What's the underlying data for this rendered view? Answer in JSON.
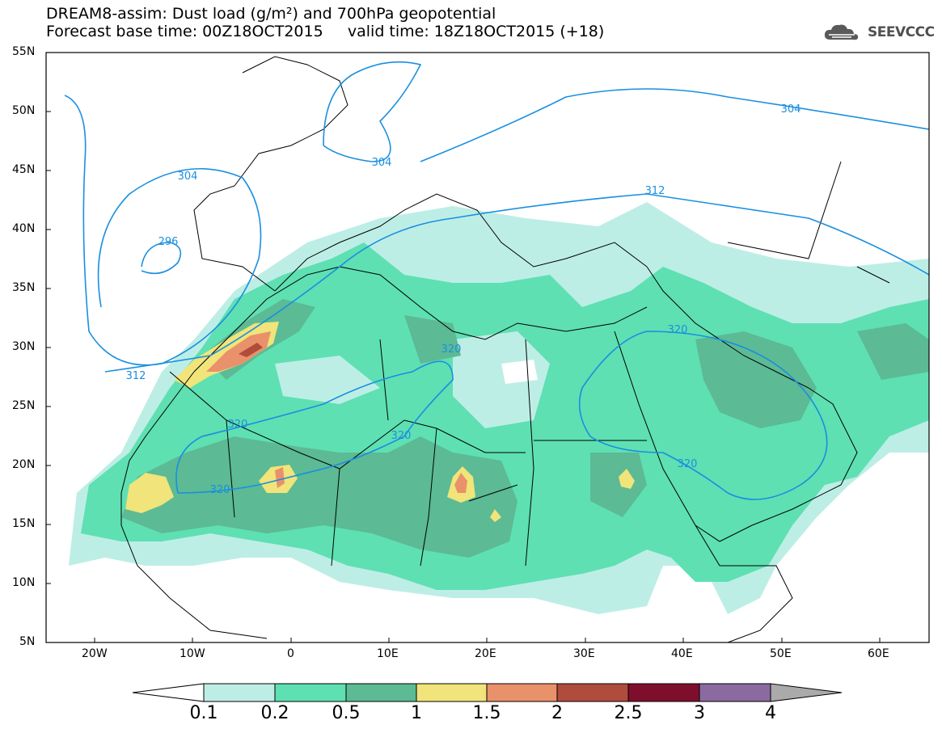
{
  "title": {
    "line1": "DREAM8-assim: Dust load (g/m²) and 700hPa geopotential",
    "line2": "Forecast base time: 00Z18OCT2015     valid time: 18Z18OCT2015 (+18)"
  },
  "logo": {
    "text": "SEEVCCC",
    "icon": "cloud-icon"
  },
  "map": {
    "lat_labels": [
      "55N",
      "50N",
      "45N",
      "40N",
      "35N",
      "30N",
      "25N",
      "20N",
      "15N",
      "10N",
      "5N"
    ],
    "lon_labels": [
      "20W",
      "10W",
      "0",
      "10E",
      "20E",
      "30E",
      "40E",
      "50E",
      "60E"
    ],
    "contour_labels": [
      "304",
      "304",
      "304",
      "296",
      "312",
      "312",
      "320",
      "320",
      "320",
      "320",
      "320",
      "320"
    ],
    "contour_color": "#1a8fe0"
  },
  "colorbar": {
    "labels": [
      "0.1",
      "0.2",
      "0.5",
      "1",
      "1.5",
      "2",
      "2.5",
      "3",
      "4"
    ],
    "colors": [
      "#ffffff",
      "#bdeee6",
      "#5ee0b2",
      "#5cba94",
      "#f0e47a",
      "#e9916a",
      "#b04c3c",
      "#7e0f2c",
      "#8a6aa0",
      "#aaaaaa"
    ]
  }
}
